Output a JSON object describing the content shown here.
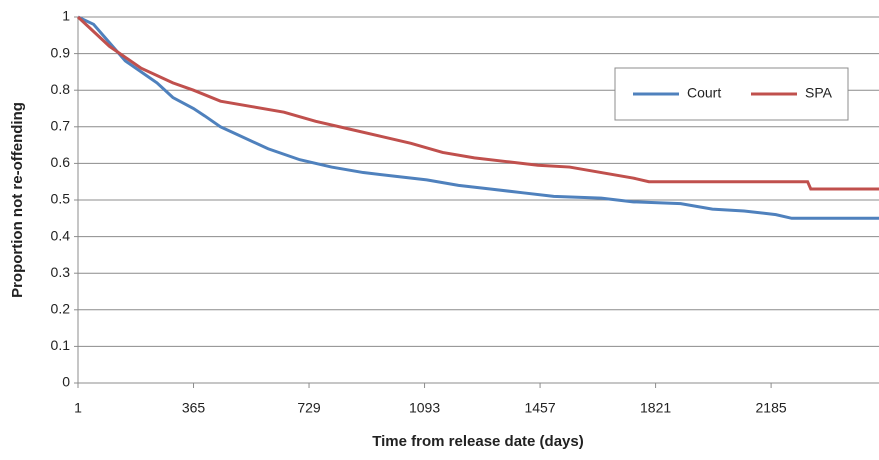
{
  "chart_data": {
    "type": "line",
    "x_label": "Time from release date (days)",
    "y_label": "Proportion not re-offending",
    "xlim": [
      1,
      2525
    ],
    "xticks": [
      1,
      365,
      729,
      1093,
      1457,
      1821,
      2185
    ],
    "ylim": [
      0,
      1
    ],
    "yticks": [
      0,
      0.1,
      0.2,
      0.3,
      0.4,
      0.5,
      0.6,
      0.7,
      0.8,
      0.9,
      1
    ],
    "grid": true,
    "legend": "upper-right",
    "series": [
      {
        "name": "Court",
        "color": "#4f81bd",
        "x": [
          1,
          50,
          100,
          150,
          200,
          250,
          300,
          365,
          400,
          450,
          500,
          600,
          700,
          800,
          900,
          1000,
          1100,
          1200,
          1300,
          1400,
          1500,
          1650,
          1750,
          1900,
          2000,
          2100,
          2200,
          2250,
          2525
        ],
        "values": [
          1,
          0.98,
          0.93,
          0.88,
          0.85,
          0.82,
          0.78,
          0.75,
          0.73,
          0.7,
          0.68,
          0.64,
          0.61,
          0.59,
          0.575,
          0.565,
          0.555,
          0.54,
          0.53,
          0.52,
          0.51,
          0.505,
          0.495,
          0.49,
          0.475,
          0.47,
          0.46,
          0.45,
          0.45
        ]
      },
      {
        "name": "SPA",
        "color": "#c0504d",
        "x": [
          1,
          100,
          200,
          300,
          365,
          450,
          550,
          650,
          750,
          850,
          950,
          1050,
          1150,
          1250,
          1350,
          1450,
          1550,
          1650,
          1750,
          1800,
          2000,
          2300,
          2310,
          2525
        ],
        "values": [
          1,
          0.92,
          0.86,
          0.82,
          0.8,
          0.77,
          0.755,
          0.74,
          0.715,
          0.695,
          0.675,
          0.655,
          0.63,
          0.615,
          0.605,
          0.595,
          0.59,
          0.575,
          0.56,
          0.55,
          0.55,
          0.55,
          0.53,
          0.53
        ]
      }
    ]
  }
}
